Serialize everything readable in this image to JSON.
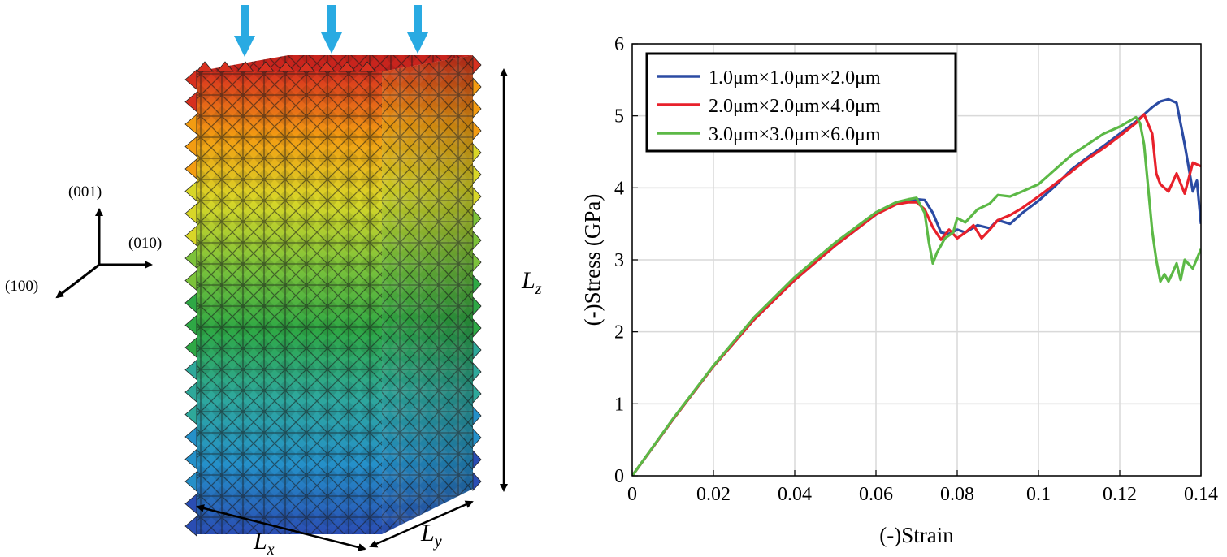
{
  "left_panel": {
    "directions": [
      "(001)",
      "(010)",
      "(100)"
    ],
    "dimension_x": {
      "symbol": "L",
      "sub": "x"
    },
    "dimension_y": {
      "symbol": "L",
      "sub": "y"
    },
    "dimension_z": {
      "symbol": "L",
      "sub": "z"
    },
    "load_arrow_color": "#29aae2",
    "lattice_colormap": [
      "#d7301f",
      "#f39c12",
      "#d8d628",
      "#7cc23a",
      "#2ea845",
      "#2ea89a",
      "#2590c9",
      "#2a4db3"
    ]
  },
  "chart_data": {
    "type": "line",
    "xlabel": "(-)Strain",
    "ylabel": "(-)Stress (GPa)",
    "xlim": [
      0,
      0.14
    ],
    "ylim": [
      0,
      6
    ],
    "xticks": [
      0,
      0.02,
      0.04,
      0.06,
      0.08,
      0.1,
      0.12,
      0.14
    ],
    "xtick_labels": [
      "0",
      "0.02",
      "0.04",
      "0.06",
      "0.08",
      "0.1",
      "0.12",
      "0.14"
    ],
    "yticks": [
      0,
      1,
      2,
      3,
      4,
      5,
      6
    ],
    "ytick_labels": [
      "0",
      "1",
      "2",
      "3",
      "4",
      "5",
      "6"
    ],
    "grid": true,
    "legend_position": "top-left",
    "series": [
      {
        "name": "1.0μm×1.0μm×2.0μm",
        "color": "#2b4ba3",
        "x": [
          0,
          0.01,
          0.02,
          0.03,
          0.04,
          0.05,
          0.06,
          0.065,
          0.068,
          0.07,
          0.072,
          0.074,
          0.076,
          0.078,
          0.08,
          0.082,
          0.085,
          0.088,
          0.09,
          0.093,
          0.096,
          0.1,
          0.104,
          0.108,
          0.112,
          0.116,
          0.12,
          0.124,
          0.126,
          0.128,
          0.13,
          0.132,
          0.134,
          0.136,
          0.138,
          0.139,
          0.14
        ],
        "y": [
          0,
          0.78,
          1.52,
          2.17,
          2.72,
          3.2,
          3.63,
          3.78,
          3.82,
          3.84,
          3.83,
          3.65,
          3.38,
          3.36,
          3.42,
          3.38,
          3.48,
          3.44,
          3.55,
          3.5,
          3.65,
          3.82,
          4.02,
          4.25,
          4.42,
          4.58,
          4.75,
          4.92,
          5.02,
          5.12,
          5.2,
          5.23,
          5.18,
          4.6,
          3.95,
          4.1,
          3.5
        ]
      },
      {
        "name": "2.0μm×2.0μm×4.0μm",
        "color": "#e8212b",
        "x": [
          0,
          0.01,
          0.02,
          0.03,
          0.04,
          0.05,
          0.06,
          0.065,
          0.068,
          0.07,
          0.072,
          0.074,
          0.076,
          0.078,
          0.08,
          0.082,
          0.084,
          0.086,
          0.088,
          0.09,
          0.093,
          0.096,
          0.1,
          0.104,
          0.108,
          0.112,
          0.116,
          0.12,
          0.124,
          0.126,
          0.128,
          0.129,
          0.13,
          0.132,
          0.134,
          0.136,
          0.138,
          0.14
        ],
        "y": [
          0,
          0.78,
          1.52,
          2.17,
          2.72,
          3.2,
          3.63,
          3.77,
          3.8,
          3.8,
          3.7,
          3.45,
          3.28,
          3.42,
          3.3,
          3.38,
          3.48,
          3.3,
          3.42,
          3.55,
          3.62,
          3.72,
          3.88,
          4.05,
          4.22,
          4.4,
          4.55,
          4.72,
          4.9,
          5.02,
          4.75,
          4.2,
          4.05,
          3.95,
          4.2,
          3.92,
          4.35,
          4.3
        ]
      },
      {
        "name": "3.0μm×3.0μm×6.0μm",
        "color": "#5cb946",
        "x": [
          0,
          0.01,
          0.02,
          0.03,
          0.04,
          0.05,
          0.06,
          0.065,
          0.068,
          0.07,
          0.072,
          0.073,
          0.074,
          0.075,
          0.077,
          0.079,
          0.08,
          0.082,
          0.085,
          0.088,
          0.09,
          0.093,
          0.096,
          0.1,
          0.104,
          0.108,
          0.112,
          0.116,
          0.12,
          0.124,
          0.125,
          0.126,
          0.127,
          0.128,
          0.129,
          0.13,
          0.131,
          0.132,
          0.133,
          0.134,
          0.135,
          0.136,
          0.138,
          0.14
        ],
        "y": [
          0,
          0.79,
          1.53,
          2.2,
          2.76,
          3.24,
          3.66,
          3.8,
          3.84,
          3.86,
          3.65,
          3.25,
          2.95,
          3.1,
          3.3,
          3.38,
          3.58,
          3.52,
          3.7,
          3.78,
          3.9,
          3.88,
          3.95,
          4.05,
          4.25,
          4.45,
          4.6,
          4.75,
          4.85,
          4.98,
          4.9,
          4.6,
          4.0,
          3.4,
          3.0,
          2.7,
          2.8,
          2.7,
          2.82,
          2.95,
          2.72,
          3.0,
          2.88,
          3.15
        ]
      }
    ]
  }
}
